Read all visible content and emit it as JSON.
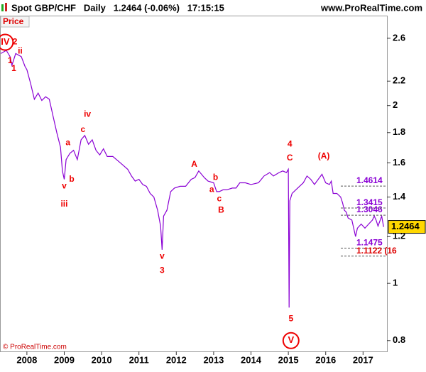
{
  "header": {
    "title": "Spot GBP/CHF   Daily   1.2464 (-0.06%)   17:15:15",
    "site": "www.ProRealTime.com"
  },
  "chart_data": {
    "type": "line",
    "panel_label": "Price",
    "copyright": "© ProRealTime.com",
    "log_scale": true,
    "xlim": [
      2007.28,
      2017.64
    ],
    "xticks": [
      2008,
      2009,
      2010,
      2011,
      2012,
      2013,
      2014,
      2015,
      2016,
      2017
    ],
    "ylim": [
      0.767,
      2.84
    ],
    "yticks": [
      0.8,
      1,
      1.2,
      1.4,
      1.6,
      1.8,
      2,
      2.2,
      2.6
    ],
    "series": [
      {
        "color": "#8a00d4",
        "x": [
          2007.3,
          2007.45,
          2007.55,
          2007.6,
          2007.7,
          2007.85,
          2007.95,
          2008.0,
          2008.1,
          2008.2,
          2008.3,
          2008.4,
          2008.5,
          2008.6,
          2008.7,
          2008.8,
          2008.9,
          2008.95,
          2009.0,
          2009.05,
          2009.15,
          2009.25,
          2009.35,
          2009.45,
          2009.55,
          2009.65,
          2009.75,
          2009.85,
          2009.95,
          2010.05,
          2010.15,
          2010.3,
          2010.4,
          2010.5,
          2010.6,
          2010.7,
          2010.8,
          2010.9,
          2011.0,
          2011.1,
          2011.2,
          2011.3,
          2011.4,
          2011.5,
          2011.58,
          2011.62,
          2011.66,
          2011.75,
          2011.85,
          2011.95,
          2012.1,
          2012.25,
          2012.4,
          2012.5,
          2012.6,
          2012.75,
          2012.85,
          2013.0,
          2013.08,
          2013.15,
          2013.25,
          2013.35,
          2013.5,
          2013.6,
          2013.7,
          2013.85,
          2014.0,
          2014.2,
          2014.35,
          2014.5,
          2014.6,
          2014.75,
          2014.85,
          2014.95,
          2015.0,
          2015.02,
          2015.04,
          2015.1,
          2015.2,
          2015.3,
          2015.4,
          2015.5,
          2015.6,
          2015.7,
          2015.8,
          2015.9,
          2016.0,
          2016.1,
          2016.15,
          2016.2,
          2016.3,
          2016.4,
          2016.45,
          2016.5,
          2016.55,
          2016.6,
          2016.7,
          2016.8,
          2016.85,
          2016.95,
          2017.05,
          2017.15,
          2017.25,
          2017.3,
          2017.35,
          2017.4,
          2017.5,
          2017.55
        ],
        "values": [
          2.45,
          2.48,
          2.42,
          2.34,
          2.45,
          2.42,
          2.33,
          2.3,
          2.18,
          2.05,
          2.1,
          2.04,
          2.07,
          2.05,
          1.92,
          1.8,
          1.7,
          1.55,
          1.5,
          1.62,
          1.66,
          1.68,
          1.62,
          1.75,
          1.78,
          1.72,
          1.75,
          1.68,
          1.65,
          1.69,
          1.64,
          1.64,
          1.62,
          1.6,
          1.58,
          1.56,
          1.52,
          1.49,
          1.5,
          1.47,
          1.46,
          1.42,
          1.4,
          1.33,
          1.25,
          1.14,
          1.3,
          1.33,
          1.43,
          1.45,
          1.46,
          1.46,
          1.5,
          1.51,
          1.55,
          1.51,
          1.49,
          1.48,
          1.43,
          1.43,
          1.44,
          1.44,
          1.45,
          1.45,
          1.48,
          1.48,
          1.47,
          1.48,
          1.52,
          1.54,
          1.52,
          1.54,
          1.55,
          1.54,
          1.56,
          0.91,
          1.38,
          1.42,
          1.44,
          1.46,
          1.48,
          1.52,
          1.5,
          1.47,
          1.5,
          1.53,
          1.48,
          1.47,
          1.49,
          1.42,
          1.42,
          1.4,
          1.37,
          1.33,
          1.32,
          1.29,
          1.28,
          1.2,
          1.24,
          1.26,
          1.24,
          1.26,
          1.28,
          1.3,
          1.28,
          1.25,
          1.3,
          1.2464
        ]
      }
    ],
    "last_price": 1.2464,
    "levels": [
      1.4614,
      1.3415,
      1.3046,
      1.1475,
      {
        "value": 1.1122,
        "label": "1.1122 (16"
      }
    ],
    "annotations": [
      {
        "text": "IV",
        "x": 2007.42,
        "y": 2.56,
        "circled": true
      },
      {
        "text": "2",
        "x": 2007.68,
        "y": 2.56
      },
      {
        "text": "ii",
        "x": 2007.82,
        "y": 2.47
      },
      {
        "text": "1",
        "x": 2007.55,
        "y": 2.38
      },
      {
        "text": "1",
        "x": 2007.65,
        "y": 2.31
      },
      {
        "text": "iv",
        "x": 2009.62,
        "y": 1.93
      },
      {
        "text": "c",
        "x": 2009.5,
        "y": 1.82
      },
      {
        "text": "a",
        "x": 2009.1,
        "y": 1.73
      },
      {
        "text": "b",
        "x": 2009.2,
        "y": 1.5
      },
      {
        "text": "v",
        "x": 2009.0,
        "y": 1.46
      },
      {
        "text": "iii",
        "x": 2009.0,
        "y": 1.36
      },
      {
        "text": "v",
        "x": 2011.62,
        "y": 1.11
      },
      {
        "text": "3",
        "x": 2011.62,
        "y": 1.05
      },
      {
        "text": "A",
        "x": 2012.48,
        "y": 1.59
      },
      {
        "text": "b",
        "x": 2013.05,
        "y": 1.51
      },
      {
        "text": "a",
        "x": 2012.95,
        "y": 1.44
      },
      {
        "text": "c",
        "x": 2013.15,
        "y": 1.39
      },
      {
        "text": "B",
        "x": 2013.2,
        "y": 1.33
      },
      {
        "text": "4",
        "x": 2015.04,
        "y": 1.72
      },
      {
        "text": "C",
        "x": 2015.04,
        "y": 1.63
      },
      {
        "text": "(A)",
        "x": 2015.95,
        "y": 1.64
      },
      {
        "text": "5",
        "x": 2015.07,
        "y": 0.87
      },
      {
        "text": "V",
        "x": 2015.07,
        "y": 0.8,
        "circled": true
      }
    ]
  }
}
